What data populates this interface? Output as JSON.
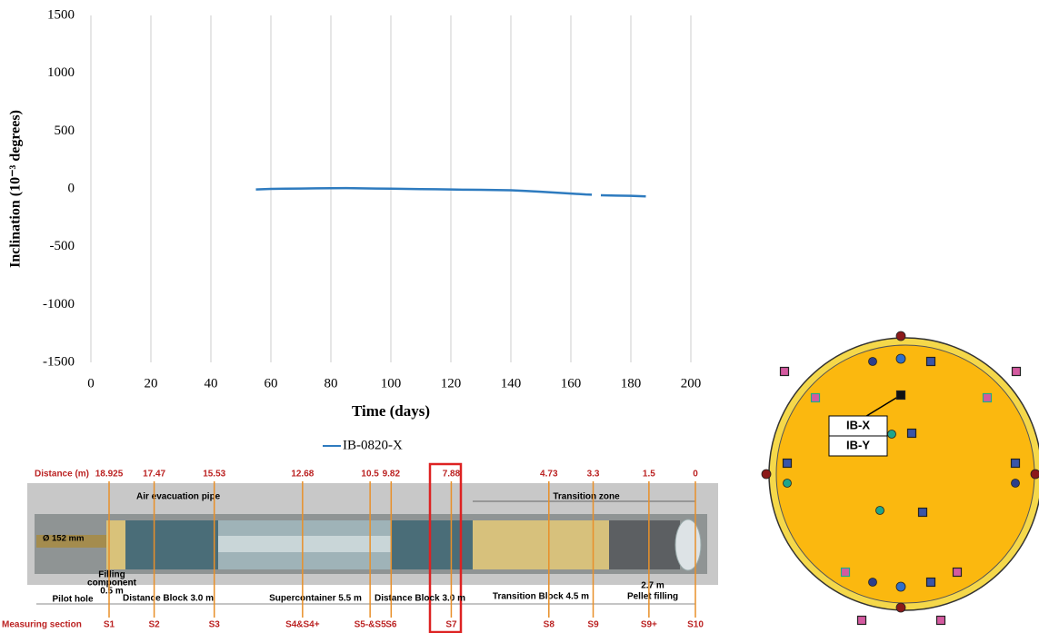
{
  "chart_data": {
    "type": "line",
    "x_label": "Time (days)",
    "y_label": "Inclination (10⁻³ degrees)",
    "x": [
      55,
      60,
      65,
      70,
      75,
      80,
      85,
      90,
      95,
      100,
      105,
      110,
      115,
      120,
      125,
      130,
      135,
      140,
      145,
      150,
      155,
      160,
      165,
      167,
      168,
      170,
      175,
      180,
      185
    ],
    "series": [
      {
        "name": "IB-0820-X",
        "color": "#2e7bbf",
        "values": [
          -5,
          0,
          2,
          3,
          5,
          6,
          7,
          5,
          3,
          2,
          0,
          -2,
          -3,
          -5,
          -7,
          -8,
          -10,
          -12,
          -18,
          -25,
          -32,
          -40,
          -48,
          -50,
          null,
          -55,
          -58,
          -60,
          -65
        ]
      }
    ],
    "xlim": [
      0,
      200
    ],
    "xticks": [
      0,
      20,
      40,
      60,
      80,
      100,
      120,
      140,
      160,
      180,
      200
    ],
    "ylim": [
      -1500,
      1500
    ],
    "yticks": [
      -1500,
      -1000,
      -500,
      0,
      500,
      1000,
      1500
    ],
    "grid": "x",
    "legend": "bottom"
  },
  "diagram": {
    "distance_label": "Distance (m)",
    "distances": [
      18.925,
      17.47,
      15.53,
      12.68,
      10.5,
      9.82,
      7.88,
      4.73,
      3.3,
      1.5,
      0
    ],
    "section_label": "Measuring section",
    "sections": [
      "S1",
      "S2",
      "S3",
      "S4&S4+",
      "S5-&S5",
      "S6",
      "S7",
      "S8",
      "S9",
      "S9+",
      "S10"
    ],
    "labels": {
      "air_pipe": "Air evacuation pipe",
      "transition_zone": "Transition zone",
      "diameter": "Ø 152 mm",
      "filling_1": "Filling",
      "filling_2": "component",
      "filling_len": "0.5 m",
      "pilot_hole": "Pilot hole",
      "distance_block_1": "Distance Block 3.0 m",
      "supercontainer": "Supercontainer 5.5 m",
      "distance_block_2": "Distance Block 3.0 m",
      "transition_block": "Transition Block 4.5 m",
      "pellet_len": "2.7 m",
      "pellet": "Pellet filling"
    }
  },
  "cross_section": {
    "labels": [
      "IB-X",
      "IB-Y"
    ]
  }
}
